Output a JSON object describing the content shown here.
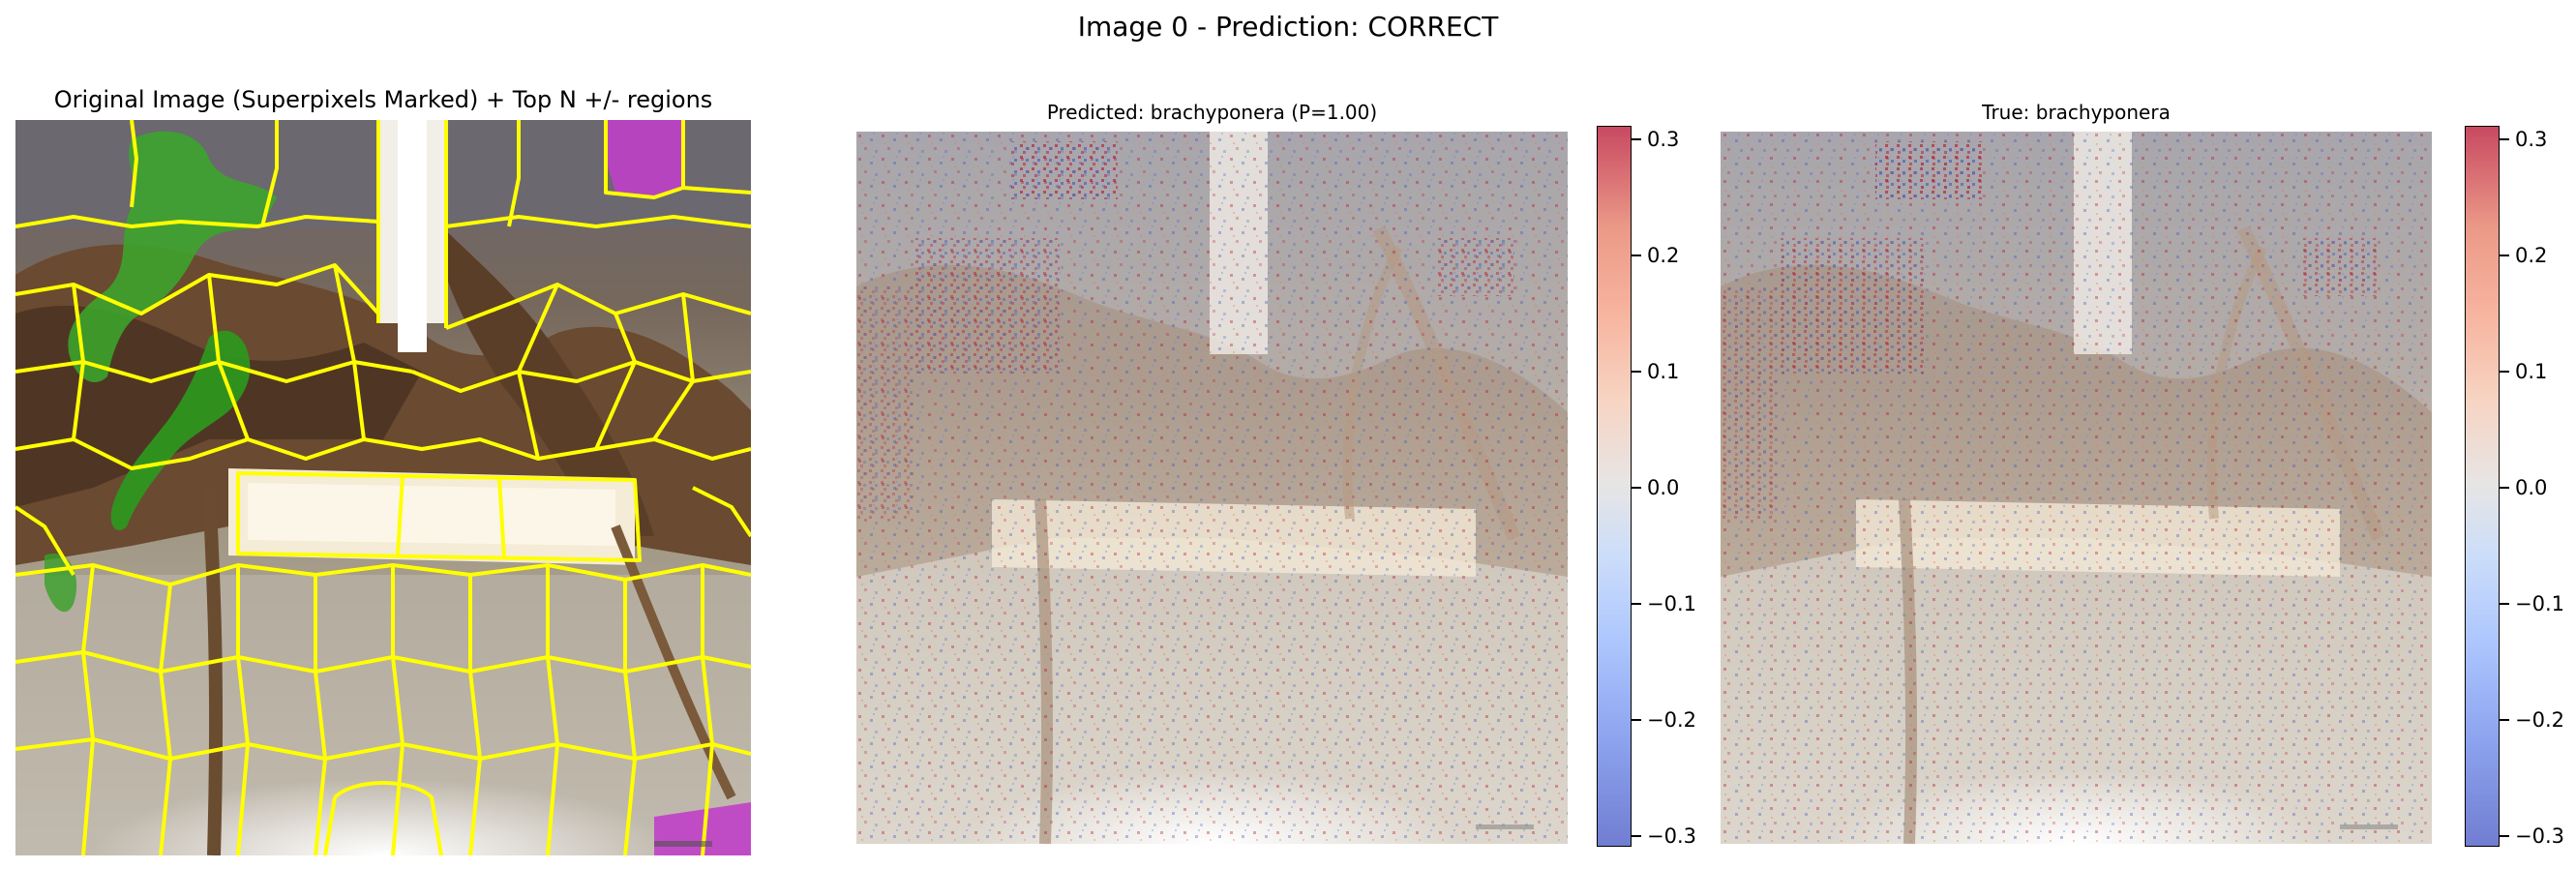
{
  "figure": {
    "suptitle": "Image 0 - Prediction: CORRECT"
  },
  "panels": [
    {
      "title": "Original Image (Superpixels Marked) + Top N +/- regions"
    },
    {
      "title": "Predicted: brachyponera (P=1.00)"
    },
    {
      "title": "True: brachyponera"
    }
  ],
  "colorbar": {
    "colormap": "coolwarm",
    "range": [
      -0.31,
      0.31
    ],
    "ticks": [
      "0.3",
      "0.2",
      "0.1",
      "0.0",
      "−0.1",
      "−0.2",
      "−0.3"
    ]
  },
  "colors": {
    "superpixel_boundary": "#ffff00",
    "positive_region": "#3aa82a",
    "negative_region": "#c040c8",
    "heatmap_high": "#b40426",
    "heatmap_low": "#3b4cc0"
  }
}
